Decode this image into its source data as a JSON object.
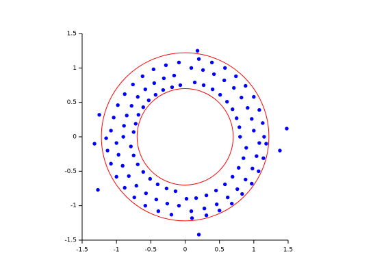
{
  "chart_data": {
    "type": "scatter",
    "series": [
      {
        "color": "#0000ff",
        "x": [
          0.8,
          0.79,
          0.75,
          0.69,
          0.61,
          0.51,
          0.4,
          0.27,
          0.14,
          1.0,
          0.97,
          0.91,
          0.82,
          0.71,
          0.57,
          0.42,
          0.26,
          0.09,
          1.15,
          1.13,
          1.08,
          1.0,
          0.88,
          0.74,
          0.58,
          0.39,
          0.2,
          -0.9,
          -0.89,
          -0.85,
          -0.78,
          -0.69,
          -0.58,
          -0.45,
          -0.31,
          -0.16,
          -1.08,
          -1.04,
          -0.98,
          -0.88,
          -0.76,
          -0.62,
          -0.46,
          -0.28,
          -0.09,
          -0.75,
          -0.72,
          -0.68,
          -0.61,
          -0.53,
          -0.43,
          -0.32,
          -0.19,
          -0.07,
          -1.0,
          -0.97,
          -0.91,
          -0.82,
          -0.71,
          -0.57,
          -0.42,
          -0.26,
          -0.09,
          -1.15,
          -1.13,
          -1.08,
          -1.0,
          -0.88,
          -0.74,
          -0.58,
          -0.39,
          -0.2,
          -0.79,
          -0.75,
          -0.69,
          -0.61,
          -0.51,
          -0.4,
          -0.27,
          -0.14,
          0.89,
          0.85,
          0.78,
          0.69,
          0.58,
          0.45,
          0.31,
          0.16,
          0.02,
          1.08,
          1.04,
          0.98,
          0.88,
          0.76,
          0.62,
          0.46,
          0.28,
          0.09,
          1.18,
          1.14,
          1.07,
          0.97,
          0.83,
          0.68,
          0.5,
          0.31,
          0.1,
          -1.32,
          -1.27,
          1.48,
          1.38,
          0.2,
          0.18,
          -1.25
        ],
        "values": [
          0,
          0.14,
          0.27,
          0.4,
          0.51,
          0.61,
          0.69,
          0.75,
          0.79,
          0.09,
          0.26,
          0.42,
          0.57,
          0.71,
          0.82,
          0.91,
          0.97,
          1.0,
          0,
          0.2,
          0.39,
          0.58,
          0.74,
          0.88,
          1.0,
          1.08,
          1.13,
          0,
          0.16,
          0.31,
          0.45,
          0.58,
          0.69,
          0.78,
          0.85,
          0.89,
          0.09,
          0.28,
          0.46,
          0.62,
          0.76,
          0.88,
          0.98,
          1.04,
          1.08,
          0.07,
          0.19,
          0.32,
          0.43,
          0.53,
          0.61,
          0.68,
          0.72,
          0.75,
          -0.09,
          -0.26,
          -0.42,
          -0.57,
          -0.71,
          -0.82,
          -0.91,
          -0.97,
          -1.0,
          -0.02,
          -0.2,
          -0.39,
          -0.58,
          -0.74,
          -0.88,
          -1.0,
          -1.08,
          -1.13,
          -0.14,
          -0.27,
          -0.4,
          -0.51,
          -0.61,
          -0.69,
          -0.75,
          -0.79,
          -0.16,
          -0.31,
          -0.45,
          -0.58,
          -0.69,
          -0.78,
          -0.85,
          -0.89,
          -0.9,
          -0.09,
          -0.28,
          -0.46,
          -0.62,
          -0.76,
          -0.88,
          -0.98,
          -1.04,
          -1.08,
          -0.1,
          -0.31,
          -0.5,
          -0.68,
          -0.83,
          -0.97,
          -1.07,
          -1.14,
          -1.18,
          -0.1,
          -0.77,
          0.12,
          -0.2,
          -1.42,
          1.25,
          0.32
        ]
      }
    ],
    "circles": [
      {
        "r": 0.7,
        "color": "#ff0000"
      },
      {
        "r": 1.22,
        "color": "#ff0000"
      }
    ],
    "xlim": [
      -1.5,
      1.5
    ],
    "xticks": [
      -1.5,
      -1,
      -0.5,
      0,
      0.5,
      1,
      1.5
    ],
    "ylim": [
      -1.5,
      1.5
    ],
    "yticks": [
      -1.5,
      -1,
      -0.5,
      0,
      0.5,
      1,
      1.5
    ]
  }
}
